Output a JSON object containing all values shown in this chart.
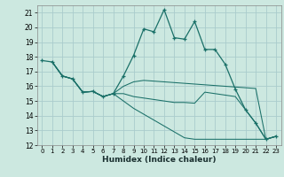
{
  "title": "",
  "xlabel": "Humidex (Indice chaleur)",
  "xlim": [
    -0.5,
    23.5
  ],
  "ylim": [
    12,
    21.5
  ],
  "yticks": [
    12,
    13,
    14,
    15,
    16,
    17,
    18,
    19,
    20,
    21
  ],
  "xticks": [
    0,
    1,
    2,
    3,
    4,
    5,
    6,
    7,
    8,
    9,
    10,
    11,
    12,
    13,
    14,
    15,
    16,
    17,
    18,
    19,
    20,
    21,
    22,
    23
  ],
  "bg_color": "#cce8e0",
  "grid_color": "#aacccc",
  "line_color": "#1a7068",
  "line1": [
    17.75,
    17.65,
    16.7,
    16.5,
    15.6,
    15.65,
    15.3,
    15.5,
    16.7,
    18.1,
    19.9,
    19.7,
    21.2,
    19.3,
    19.2,
    20.4,
    18.5,
    18.5,
    17.5,
    15.8,
    14.4,
    13.5,
    12.4,
    12.6
  ],
  "line2_x": [
    1,
    2,
    3,
    4,
    5,
    6,
    7,
    8,
    9,
    10,
    11,
    12,
    13,
    14,
    15,
    16,
    17,
    18,
    19,
    20,
    21,
    22,
    23
  ],
  "line2_y": [
    17.65,
    16.7,
    16.5,
    15.6,
    15.65,
    15.3,
    15.5,
    16.0,
    16.3,
    16.4,
    16.35,
    16.3,
    16.25,
    16.2,
    16.15,
    16.1,
    16.05,
    16.0,
    15.95,
    15.9,
    15.85,
    12.4,
    12.6
  ],
  "line3_x": [
    1,
    2,
    3,
    4,
    5,
    6,
    7,
    8,
    9,
    10,
    11,
    12,
    13,
    14,
    15,
    16,
    17,
    18,
    19,
    20,
    21,
    22,
    23
  ],
  "line3_y": [
    17.65,
    16.7,
    16.5,
    15.6,
    15.65,
    15.3,
    15.5,
    15.5,
    15.3,
    15.2,
    15.1,
    15.0,
    14.9,
    14.9,
    14.85,
    15.6,
    15.5,
    15.4,
    15.3,
    14.4,
    13.5,
    12.4,
    12.6
  ],
  "line4_x": [
    1,
    2,
    3,
    4,
    5,
    6,
    7,
    8,
    9,
    10,
    11,
    12,
    13,
    14,
    15,
    16,
    17,
    18,
    19,
    20,
    21,
    22,
    23
  ],
  "line4_y": [
    17.65,
    16.7,
    16.5,
    15.6,
    15.65,
    15.3,
    15.5,
    15.0,
    14.5,
    14.1,
    13.7,
    13.3,
    12.9,
    12.5,
    12.4,
    12.4,
    12.4,
    12.4,
    12.4,
    12.4,
    12.4,
    12.4,
    12.6
  ]
}
